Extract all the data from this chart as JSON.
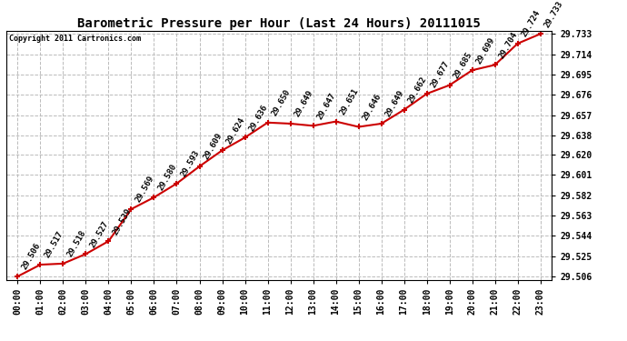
{
  "title": "Barometric Pressure per Hour (Last 24 Hours) 20111015",
  "copyright": "Copyright 2011 Cartronics.com",
  "hours": [
    "00:00",
    "01:00",
    "02:00",
    "03:00",
    "04:00",
    "05:00",
    "06:00",
    "07:00",
    "08:00",
    "09:00",
    "10:00",
    "11:00",
    "12:00",
    "13:00",
    "14:00",
    "15:00",
    "16:00",
    "17:00",
    "18:00",
    "19:00",
    "20:00",
    "21:00",
    "22:00",
    "23:00"
  ],
  "values": [
    29.506,
    29.517,
    29.518,
    29.527,
    29.539,
    29.569,
    29.58,
    29.593,
    29.609,
    29.624,
    29.636,
    29.65,
    29.649,
    29.647,
    29.651,
    29.646,
    29.649,
    29.662,
    29.677,
    29.685,
    29.699,
    29.704,
    29.724,
    29.733
  ],
  "yticks": [
    29.506,
    29.525,
    29.544,
    29.563,
    29.582,
    29.601,
    29.62,
    29.638,
    29.657,
    29.676,
    29.695,
    29.714,
    29.733
  ],
  "line_color": "#cc0000",
  "marker_color": "#cc0000",
  "bg_color": "#ffffff",
  "plot_bg_color": "#ffffff",
  "grid_color": "#bbbbbb",
  "title_fontsize": 10,
  "annotation_fontsize": 6.5,
  "tick_fontsize": 7,
  "copyright_fontsize": 6
}
